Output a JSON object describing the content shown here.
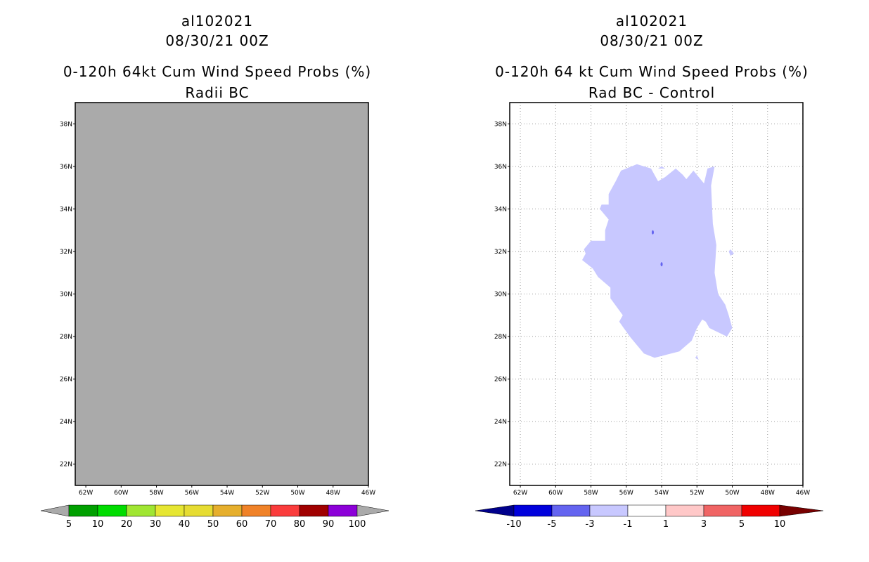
{
  "chart_data": [
    {
      "type": "heatmap",
      "storm_id": "al102021",
      "datetime": "08/30/21 00Z",
      "title": "0-120h 64kt Cum Wind Speed Probs (%)",
      "subtitle": "Radii BC",
      "xlim": [
        -62.6,
        -46
      ],
      "ylim": [
        21,
        39
      ],
      "x_ticks": [
        "62W",
        "60W",
        "58W",
        "56W",
        "54W",
        "52W",
        "50W",
        "48W",
        "46W"
      ],
      "x_tick_values": [
        -62,
        -60,
        -58,
        -56,
        -54,
        -52,
        -50,
        -48,
        -46
      ],
      "y_ticks": [
        "22N",
        "24N",
        "26N",
        "28N",
        "30N",
        "32N",
        "34N",
        "36N",
        "38N"
      ],
      "y_tick_values": [
        22,
        24,
        26,
        28,
        30,
        32,
        34,
        36,
        38
      ],
      "grid": false,
      "field": "no data (entire domain shaded gray)",
      "background_color": "#aaaaaa",
      "colorbar": {
        "labels": [
          "5",
          "10",
          "20",
          "30",
          "40",
          "50",
          "60",
          "70",
          "80",
          "90",
          "100"
        ],
        "colors": [
          "#00a000",
          "#00dc00",
          "#a0e632",
          "#e6e632",
          "#e6dc32",
          "#e6af2d",
          "#f08228",
          "#fa3c3c",
          "#a00000",
          "#8c00d8"
        ],
        "end_colors": [
          "#aaaaaa",
          "#aaaaaa"
        ]
      }
    },
    {
      "type": "heatmap",
      "storm_id": "al102021",
      "datetime": "08/30/21 00Z",
      "title": "0-120h 64 kt Cum Wind Speed Probs (%)",
      "subtitle": "Rad BC - Control",
      "xlim": [
        -62.6,
        -46
      ],
      "ylim": [
        21,
        39
      ],
      "x_ticks": [
        "62W",
        "60W",
        "58W",
        "56W",
        "54W",
        "52W",
        "50W",
        "48W",
        "46W"
      ],
      "x_tick_values": [
        -62,
        -60,
        -58,
        -56,
        -54,
        -52,
        -50,
        -48,
        -46
      ],
      "y_ticks": [
        "22N",
        "24N",
        "26N",
        "28N",
        "30N",
        "32N",
        "34N",
        "36N",
        "38N"
      ],
      "y_tick_values": [
        22,
        24,
        26,
        28,
        30,
        32,
        34,
        36,
        38
      ],
      "grid": true,
      "field": "difference -3 to -1 shaded over roughly 27N-36N, 50W-57W",
      "main_region": {
        "range": "-3 to -1",
        "color": "#c8c8ff",
        "polygon_lonlat": [
          [
            -54.6,
            35.9
          ],
          [
            -54.2,
            35.3
          ],
          [
            -53.8,
            35.5
          ],
          [
            -53.2,
            35.9
          ],
          [
            -52.8,
            35.6
          ],
          [
            -52.6,
            35.4
          ],
          [
            -52.2,
            35.8
          ],
          [
            -51.6,
            35.2
          ],
          [
            -51.4,
            35.9
          ],
          [
            -51.0,
            36.0
          ],
          [
            -51.2,
            35.1
          ],
          [
            -51.1,
            33.3
          ],
          [
            -50.9,
            32.3
          ],
          [
            -51.0,
            31.0
          ],
          [
            -50.8,
            30.0
          ],
          [
            -50.4,
            29.5
          ],
          [
            -50.2,
            29.0
          ],
          [
            -50.0,
            28.4
          ],
          [
            -50.3,
            28.0
          ],
          [
            -51.3,
            28.4
          ],
          [
            -51.5,
            28.7
          ],
          [
            -51.7,
            28.8
          ],
          [
            -52.0,
            28.4
          ],
          [
            -52.3,
            27.8
          ],
          [
            -53.0,
            27.3
          ],
          [
            -54.4,
            27.0
          ],
          [
            -55.0,
            27.2
          ],
          [
            -55.8,
            28.0
          ],
          [
            -56.4,
            28.7
          ],
          [
            -56.2,
            29.0
          ],
          [
            -56.9,
            29.8
          ],
          [
            -56.9,
            30.3
          ],
          [
            -57.6,
            30.8
          ],
          [
            -57.9,
            31.2
          ],
          [
            -58.5,
            31.6
          ],
          [
            -58.3,
            31.9
          ],
          [
            -58.4,
            32.1
          ],
          [
            -58.0,
            32.5
          ],
          [
            -57.2,
            32.5
          ],
          [
            -57.2,
            33.0
          ],
          [
            -57.0,
            33.5
          ],
          [
            -57.5,
            34.0
          ],
          [
            -57.4,
            34.2
          ],
          [
            -57.0,
            34.2
          ],
          [
            -57.0,
            34.7
          ],
          [
            -56.6,
            35.3
          ],
          [
            -56.3,
            35.8
          ],
          [
            -55.4,
            36.1
          ]
        ]
      },
      "small_regions": [
        {
          "range": "-3 to -1",
          "color": "#c8c8ff",
          "polygon_lonlat": [
            [
              -54.2,
              35.9
            ],
            [
              -54.0,
              36.0
            ],
            [
              -53.8,
              35.9
            ]
          ]
        },
        {
          "range": "-3 to -1",
          "color": "#c8c8ff",
          "polygon_lonlat": [
            [
              -50.2,
              32.0
            ],
            [
              -50.1,
              32.1
            ],
            [
              -49.9,
              31.9
            ],
            [
              -50.1,
              31.8
            ]
          ]
        },
        {
          "range": "-3 to -1",
          "color": "#c8c8ff",
          "polygon_lonlat": [
            [
              -52.1,
              27.0
            ],
            [
              -52.0,
              27.1
            ],
            [
              -51.9,
              26.9
            ]
          ]
        }
      ],
      "dots": [
        {
          "range": "-5 to -3",
          "color": "#6464f0",
          "lon": -54.5,
          "lat": 32.9
        },
        {
          "range": "-5 to -3",
          "color": "#6464f0",
          "lon": -54.0,
          "lat": 31.4
        }
      ],
      "colorbar": {
        "labels": [
          "-10",
          "-5",
          "-3",
          "-1",
          "1",
          "3",
          "5",
          "10"
        ],
        "colors": [
          "#0000dc",
          "#6464f0",
          "#c8c8ff",
          "#ffffff",
          "#ffc8c8",
          "#f06464",
          "#f00000"
        ],
        "end_colors": [
          "#00008c",
          "#780000"
        ]
      }
    }
  ]
}
